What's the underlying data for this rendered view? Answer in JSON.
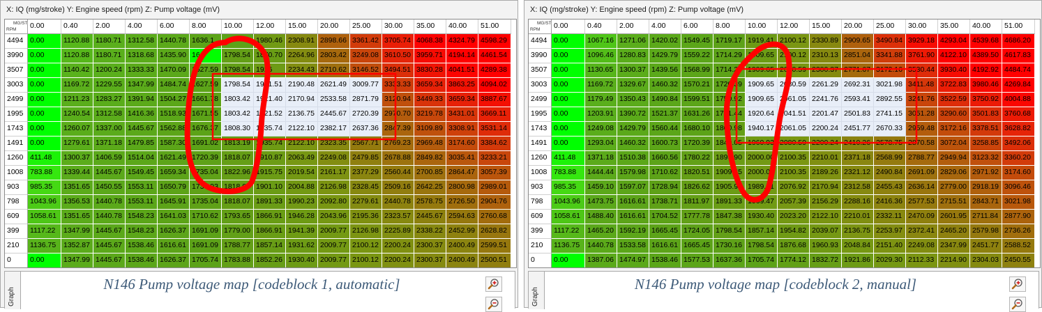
{
  "colors": {
    "low_green": "#00ff00",
    "mid_green": "#5aa81c",
    "olive": "#8f8a12",
    "orange": "#c24c0e",
    "red": "#ff0000",
    "editing_cell": "#e8eef8",
    "caption_blue": "#3d5a78",
    "annotation_red": "#ff0000"
  },
  "icons": [
    "zoom-in-icon",
    "zoom-out-icon"
  ],
  "panels": [
    {
      "title": "X: IQ (mg/stroke) Y: Engine speed (rpm) Z: Pump voltage (mV)",
      "corner_top": "MG/ST",
      "corner_bottom": "RPM",
      "graph_tab": "Graph",
      "caption": "N146 Pump voltage map [codeblock 1, automatic]",
      "columns": [
        "0.00",
        "0.40",
        "2.00",
        "4.00",
        "6.00",
        "8.00",
        "10.00",
        "12.00",
        "15.00",
        "20.00",
        "25.00",
        "30.00",
        "35.00",
        "40.00",
        "51.00"
      ],
      "rows": [
        {
          "rpm": "4494",
          "values": [
            "0.00",
            "1120.88",
            "1180.71",
            "1312.58",
            "1440.78",
            "1636.1",
            "",
            "1980.46",
            "2308.91",
            "2898.66",
            "3361.42",
            "3705.74",
            "4068.38",
            "4324.79",
            "4598.29"
          ]
        },
        {
          "rpm": "3990",
          "values": [
            "0.00",
            "1120.88",
            "1180.71",
            "1318.68",
            "1435.90",
            "16",
            "1798.54",
            "1870.70",
            "2264.96",
            "2803.42",
            "3249.08",
            "3610.50",
            "3959.71",
            "4194.14",
            "4461.54"
          ]
        },
        {
          "rpm": "3507",
          "values": [
            "0.00",
            "1140.42",
            "1200.24",
            "1333.33",
            "1470.09",
            "1627.59",
            "1798.54",
            "1926",
            "2234.43",
            "2710.62",
            "3146.52",
            "3494.51",
            "3830.28",
            "4041.51",
            "4289.38"
          ]
        },
        {
          "rpm": "3003",
          "values": [
            "0.00",
            "1169.72",
            "1229.55",
            "1347.99",
            "1484.74",
            "1627.59",
            "1798.54",
            "1931.51",
            "2190.48",
            "2621.49",
            "3009.77",
            "3333.33",
            "3659.34",
            "3863.25",
            "4094.02"
          ]
        },
        {
          "rpm": "2499",
          "values": [
            "0.00",
            "1211.23",
            "1283.27",
            "1391.94",
            "1504.27",
            "1661.78",
            "1803.42",
            "1921.40",
            "2170.94",
            "2533.58",
            "2871.79",
            "3120.94",
            "3449.33",
            "3659.34",
            "3887.67"
          ]
        },
        {
          "rpm": "1995",
          "values": [
            "0.00",
            "1240.54",
            "1312.58",
            "1416.36",
            "1518.93",
            "1671.55",
            "1803.42",
            "1921.52",
            "2136.75",
            "2445.67",
            "2720.39",
            "2970.70",
            "3219.78",
            "3431.01",
            "3669.11"
          ]
        },
        {
          "rpm": "1743",
          "values": [
            "0.00",
            "1260.07",
            "1337.00",
            "1445.67",
            "1562.88",
            "1676.37",
            "1808.30",
            "1935.74",
            "2122.10",
            "2382.17",
            "2637.36",
            "2847.39",
            "3109.89",
            "3308.91",
            "3531.14"
          ]
        },
        {
          "rpm": "1491",
          "values": [
            "0.00",
            "1279.61",
            "1371.18",
            "1479.85",
            "1587.30",
            "1691.02",
            "1813.19",
            "1935.74",
            "2122.10",
            "2323.35",
            "2567.71",
            "2769.23",
            "2969.48",
            "3174.60",
            "3384.62"
          ]
        },
        {
          "rpm": "1260",
          "values": [
            "411.48",
            "1300.37",
            "1406.59",
            "1514.04",
            "1621.49",
            "1720.39",
            "1818.07",
            "1910.87",
            "2063.49",
            "2249.08",
            "2479.85",
            "2678.88",
            "2849.82",
            "3035.41",
            "3233.21"
          ]
        },
        {
          "rpm": "1008",
          "values": [
            "783.88",
            "1339.44",
            "1445.67",
            "1549.45",
            "1659.34",
            "1735.04",
            "1822.96",
            "1915.75",
            "2019.54",
            "2161.17",
            "2377.29",
            "2560.44",
            "2700.85",
            "2864.47",
            "3057.39"
          ]
        },
        {
          "rpm": "903",
          "values": [
            "985.35",
            "1351.65",
            "1450.55",
            "1553.11",
            "1650.79",
            "1739.93",
            "1818.07",
            "1901.10",
            "2004.88",
            "2126.98",
            "2328.45",
            "2509.16",
            "2642.25",
            "2800.98",
            "2989.01"
          ]
        },
        {
          "rpm": "798",
          "values": [
            "1043.96",
            "1356.53",
            "1440.78",
            "1553.11",
            "1645.91",
            "1735.04",
            "1818.07",
            "1891.33",
            "1990.23",
            "2092.80",
            "2279.61",
            "2440.78",
            "2578.75",
            "2726.50",
            "2904.76"
          ]
        },
        {
          "rpm": "609",
          "values": [
            "1058.61",
            "1351.65",
            "1440.78",
            "1548.23",
            "1641.03",
            "1710.62",
            "1793.65",
            "1866.91",
            "1946.28",
            "2043.96",
            "2195.36",
            "2323.57",
            "2445.67",
            "2594.63",
            "2760.68"
          ]
        },
        {
          "rpm": "399",
          "values": [
            "1117.22",
            "1347.99",
            "1445.67",
            "1548.23",
            "1626.37",
            "1691.09",
            "1779.00",
            "1866.91",
            "1941.39",
            "2009.77",
            "2126.98",
            "2225.89",
            "2338.22",
            "2452.99",
            "2628.82"
          ]
        },
        {
          "rpm": "210",
          "values": [
            "1136.75",
            "1352.87",
            "1445.67",
            "1538.46",
            "1616.61",
            "1691.09",
            "1788.77",
            "1857.14",
            "1931.62",
            "2009.77",
            "2100.12",
            "2200.24",
            "2300.37",
            "2400.49",
            "2599.51"
          ]
        },
        {
          "rpm": "0",
          "values": [
            "0.00",
            "1347.99",
            "1445.67",
            "1538.46",
            "1626.37",
            "1705.74",
            "1783.88",
            "1852.26",
            "1930.40",
            "2009.77",
            "2100.12",
            "2200.24",
            "2300.37",
            "2400.49",
            "2500.51"
          ]
        }
      ]
    },
    {
      "title": "X: IQ (mg/stroke) Y: Engine speed (rpm) Z: Pump voltage (mV)",
      "corner_top": "MG/ST",
      "corner_bottom": "RPM",
      "graph_tab": "Graph",
      "caption": "N146 Pump voltage map [codeblock 2, manual]",
      "columns": [
        "0.00",
        "0.40",
        "2.00",
        "4.00",
        "6.00",
        "8.00",
        "10.00",
        "12.00",
        "15.00",
        "20.00",
        "25.00",
        "30.00",
        "35.00",
        "40.00",
        "51.00"
      ],
      "rows": [
        {
          "rpm": "4494",
          "values": [
            "0.00",
            "1067.16",
            "1271.06",
            "1420.02",
            "1549.45",
            "1719.17",
            "1919.41",
            "2100.12",
            "2330.89",
            "2909.65",
            "3490.84",
            "3929.18",
            "4293.04",
            "4539.68",
            "4686.20"
          ]
        },
        {
          "rpm": "3990",
          "values": [
            "0.00",
            "1096.46",
            "1280.83",
            "1429.79",
            "1559.22",
            "1714.29",
            "1909.65",
            "2100.12",
            "2310.13",
            "2851.04",
            "3341.88",
            "3761.90",
            "4122.10",
            "4389.50",
            "4617.83"
          ]
        },
        {
          "rpm": "3507",
          "values": [
            "0.00",
            "1130.65",
            "1300.37",
            "1439.56",
            "1568.99",
            "1714.29",
            "1909.65",
            "2080.59",
            "2300.37",
            "2771.67",
            "3172.16",
            "3530.44",
            "3930.40",
            "4192.92",
            "4484.74"
          ]
        },
        {
          "rpm": "3003",
          "values": [
            "0.00",
            "1169.72",
            "1329.67",
            "1460.32",
            "1570.21",
            "1720.39",
            "1909.65",
            "2080.59",
            "2261.29",
            "2692.31",
            "3021.98",
            "3411.48",
            "3722.83",
            "3980.46",
            "4269.84"
          ]
        },
        {
          "rpm": "2499",
          "values": [
            "0.00",
            "1179.49",
            "1350.43",
            "1490.84",
            "1599.51",
            "1750.92",
            "1909.65",
            "2061.05",
            "2241.76",
            "2593.41",
            "2892.55",
            "3241.76",
            "3522.59",
            "3750.92",
            "4004.88"
          ]
        },
        {
          "rpm": "1995",
          "values": [
            "0.00",
            "1203.91",
            "1390.72",
            "1521.37",
            "1631.26",
            "1781.44",
            "1920.64",
            "2041.51",
            "2201.47",
            "2501.83",
            "2741.15",
            "3051.28",
            "3290.60",
            "3501.83",
            "3760.68"
          ]
        },
        {
          "rpm": "1743",
          "values": [
            "0.00",
            "1249.08",
            "1429.79",
            "1560.44",
            "1680.10",
            "1800.98",
            "1940.17",
            "2061.05",
            "2200.24",
            "2451.77",
            "2670.33",
            "2959.48",
            "3172.16",
            "3378.51",
            "3628.82"
          ]
        },
        {
          "rpm": "1491",
          "values": [
            "0.00",
            "1293.04",
            "1460.32",
            "1600.73",
            "1720.39",
            "1840.05",
            "1960.93",
            "2080.59",
            "2200.24",
            "2410.26",
            "2578.75",
            "2870.58",
            "3072.04",
            "3258.85",
            "3492.06"
          ]
        },
        {
          "rpm": "1260",
          "values": [
            "411.48",
            "1371.18",
            "1510.38",
            "1660.56",
            "1780.22",
            "1899.90",
            "2000.00",
            "2100.35",
            "2210.01",
            "2371.18",
            "2568.99",
            "2788.77",
            "2949.94",
            "3123.32",
            "3360.20"
          ]
        },
        {
          "rpm": "1008",
          "values": [
            "783.88",
            "1444.44",
            "1579.98",
            "1710.62",
            "1820.51",
            "1909.65",
            "2000.00",
            "2100.35",
            "2189.26",
            "2321.12",
            "2490.84",
            "2691.09",
            "2829.06",
            "2971.92",
            "3174.60"
          ]
        },
        {
          "rpm": "903",
          "values": [
            "985.35",
            "1459.10",
            "1597.07",
            "1728.94",
            "1826.62",
            "1905.98",
            "1989.01",
            "2076.92",
            "2170.94",
            "2312.58",
            "2455.43",
            "2636.14",
            "2779.00",
            "2918.19",
            "3096.46"
          ]
        },
        {
          "rpm": "798",
          "values": [
            "1043.96",
            "1473.75",
            "1616.61",
            "1738.71",
            "1811.97",
            "1891.33",
            "1969.47",
            "2057.39",
            "2156.29",
            "2288.16",
            "2416.36",
            "2577.53",
            "2715.51",
            "2843.71",
            "3021.98"
          ]
        },
        {
          "rpm": "609",
          "values": [
            "1058.61",
            "1488.40",
            "1616.61",
            "1704.52",
            "1777.78",
            "1847.38",
            "1930.40",
            "2023.20",
            "2122.10",
            "2210.01",
            "2332.11",
            "2470.09",
            "2601.95",
            "2711.84",
            "2877.90"
          ]
        },
        {
          "rpm": "399",
          "values": [
            "1117.22",
            "1465.20",
            "1592.19",
            "1665.45",
            "1724.05",
            "1798.54",
            "1857.14",
            "1954.82",
            "2039.07",
            "2136.75",
            "2253.97",
            "2372.41",
            "2465.20",
            "2579.98",
            "2736.26"
          ]
        },
        {
          "rpm": "210",
          "values": [
            "1136.75",
            "1440.78",
            "1533.58",
            "1616.61",
            "1665.45",
            "1730.16",
            "1798.54",
            "1876.68",
            "1960.93",
            "2048.84",
            "2151.40",
            "2249.08",
            "2347.99",
            "2451.77",
            "2588.52"
          ]
        },
        {
          "rpm": "0",
          "values": [
            "0.00",
            "1387.06",
            "1474.97",
            "1538.46",
            "1577.53",
            "1637.36",
            "1705.74",
            "1774.12",
            "1832.72",
            "1921.86",
            "2029.30",
            "2112.33",
            "2214.90",
            "2304.03",
            "2450.55"
          ]
        }
      ]
    }
  ]
}
